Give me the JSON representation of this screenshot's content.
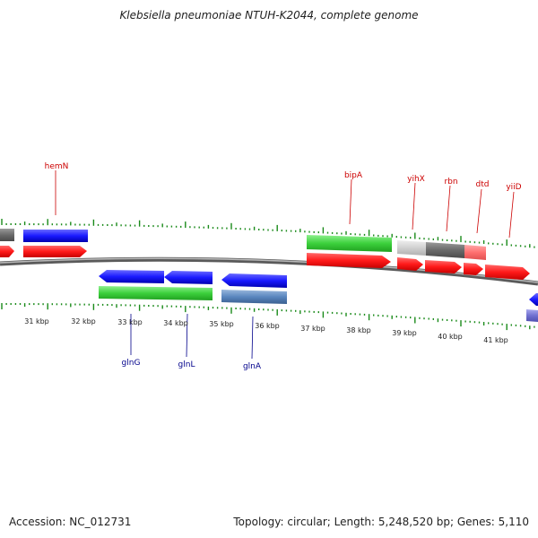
{
  "title": "Klebsiella pneumoniae NTUH-K2044, complete genome",
  "footer": {
    "accession": "Accession: NC_012731",
    "stats": "Topology: circular; Length: 5,248,520 bp; Genes: 5,110"
  },
  "colors": {
    "forward_gene": "#ff0000",
    "reverse_gene": "#0000ff",
    "forward_label": "#cc0000",
    "reverse_label": "#00008b",
    "tick": "#1a8a1a",
    "backbone": "#808080"
  },
  "ruler_labels": [
    "31 kbp",
    "32 kbp",
    "33 kbp",
    "34 kbp",
    "35 kbp",
    "36 kbp",
    "37 kbp",
    "38 kbp",
    "39 kbp",
    "40 kbp",
    "41 kbp"
  ],
  "forward_genes": [
    "hemN",
    "bipA",
    "yihX",
    "rbn",
    "dtd",
    "yiiD"
  ],
  "reverse_genes": [
    "glnG",
    "glnL",
    "glnA"
  ]
}
